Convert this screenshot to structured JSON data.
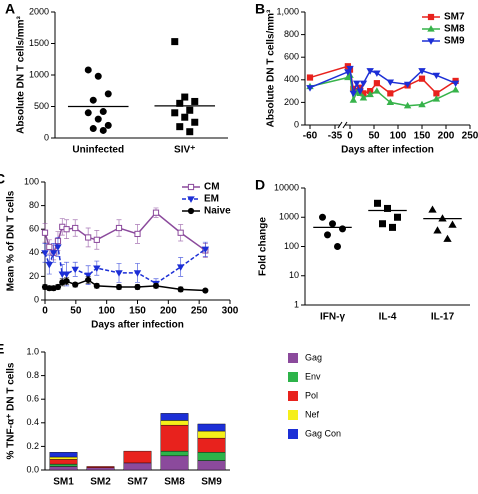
{
  "chart_data": [
    {
      "type": "dot",
      "panel_label": "A",
      "y_label": "Absolute DN T cells/mm³",
      "categories": [
        "Uninfected",
        "SIV⁺"
      ],
      "markers": [
        "circle",
        "square"
      ],
      "color": "#000000",
      "values": [
        [
          1080,
          980,
          700,
          600,
          420,
          400,
          300,
          200,
          150,
          120
        ],
        [
          1530,
          650,
          580,
          550,
          440,
          400,
          330,
          250,
          180,
          100
        ]
      ],
      "means": [
        500,
        510
      ],
      "ylim": [
        0,
        2000
      ],
      "yticks": [
        0,
        500,
        1000,
        1500,
        2000
      ]
    },
    {
      "type": "line",
      "panel_label": "B",
      "x_label": "Days after infection",
      "y_label": "Absolute DN T cells/mm³",
      "x": [
        -60,
        -5,
        0,
        7,
        14,
        21,
        28,
        42,
        56,
        84,
        120,
        150,
        180,
        220
      ],
      "series": [
        {
          "name": "SM7",
          "color": "#e8221d",
          "marker": "square",
          "values": [
            420,
            520,
            490,
            320,
            300,
            330,
            280,
            300,
            370,
            280,
            350,
            410,
            280,
            390
          ]
        },
        {
          "name": "SM8",
          "color": "#37b34a",
          "marker": "triangle",
          "values": [
            340,
            420,
            440,
            220,
            290,
            280,
            240,
            270,
            300,
            200,
            170,
            180,
            230,
            310
          ]
        },
        {
          "name": "SM9",
          "color": "#1c2fd6",
          "marker": "triangle-down",
          "values": [
            330,
            470,
            500,
            280,
            370,
            300,
            370,
            480,
            460,
            380,
            360,
            480,
            440,
            370
          ]
        }
      ],
      "xlim": [
        -65,
        250
      ],
      "xticks": [
        -60,
        -35,
        0,
        50,
        100,
        150,
        200,
        250
      ],
      "x_axis_break": true,
      "ylim": [
        0,
        1000
      ],
      "yticks": [
        0,
        200,
        400,
        600,
        800,
        {
          "value": 1000,
          "label": "1,000"
        }
      ],
      "legend": "top-right"
    },
    {
      "type": "line",
      "panel_label": "C",
      "x_label": "Days after infection",
      "y_label": "Mean % of DN T cells",
      "x": [
        0,
        7,
        14,
        21,
        28,
        35,
        49,
        70,
        84,
        120,
        150,
        180,
        220,
        260
      ],
      "series": [
        {
          "name": "CM",
          "color": "#8b4a9c",
          "marker": "open-square",
          "values": [
            57,
            45,
            40,
            50,
            62,
            60,
            61,
            53,
            51,
            61,
            56,
            74,
            57,
            42
          ],
          "errors": [
            8,
            6,
            6,
            8,
            7,
            8,
            7,
            8,
            8,
            7,
            8,
            4,
            7,
            6
          ]
        },
        {
          "name": "EM",
          "color": "#1c2fd6",
          "marker": "triangle-down",
          "dashed": true,
          "values": [
            40,
            30,
            40,
            45,
            22,
            22,
            26,
            21,
            27,
            23,
            23,
            14,
            28,
            43
          ],
          "errors": [
            8,
            8,
            8,
            8,
            8,
            10,
            6,
            8,
            6,
            8,
            8,
            4,
            8,
            6
          ]
        },
        {
          "name": "Naive",
          "color": "#000000",
          "marker": "circle",
          "values": [
            11,
            10,
            10,
            11,
            15,
            16,
            13,
            17,
            12,
            11,
            11,
            12,
            9,
            8
          ],
          "errors": [
            2,
            2,
            2,
            2,
            3,
            3,
            2,
            3,
            2,
            2,
            2,
            2,
            2,
            1
          ]
        }
      ],
      "xlim": [
        0,
        300
      ],
      "xticks": [
        0,
        50,
        100,
        150,
        200,
        250,
        300
      ],
      "ylim": [
        0,
        100
      ],
      "yticks": [
        0,
        20,
        40,
        60,
        80,
        100
      ],
      "legend": "top-right"
    },
    {
      "type": "dot",
      "panel_label": "D",
      "y_label": "Fold change",
      "log_scale": true,
      "categories": [
        "IFN-γ",
        "IL-4",
        "IL-17"
      ],
      "markers": [
        "circle",
        "square",
        "triangle"
      ],
      "color": "#000000",
      "values": [
        [
          1000,
          600,
          400,
          250,
          100
        ],
        [
          3000,
          2000,
          1000,
          600,
          450
        ],
        [
          1800,
          900,
          550,
          350,
          180
        ]
      ],
      "means": [
        450,
        1700,
        900
      ],
      "ylim": [
        1,
        10000
      ],
      "yticks": [
        1,
        10,
        100,
        1000,
        10000
      ]
    },
    {
      "type": "bar",
      "panel_label": "E",
      "y_label": "% TNF-α⁺ DN T cells",
      "categories": [
        "SM1",
        "SM2",
        "SM7",
        "SM8",
        "SM9"
      ],
      "series": [
        {
          "name": "Gag",
          "color": "#8b4a9c",
          "values": [
            0.03,
            0.02,
            0.06,
            0.12,
            0.08
          ]
        },
        {
          "name": "Env",
          "color": "#2db34a",
          "values": [
            0.02,
            0,
            0,
            0.04,
            0.07
          ]
        },
        {
          "name": "Pol",
          "color": "#e8221d",
          "values": [
            0.04,
            0.01,
            0.1,
            0.22,
            0.12
          ]
        },
        {
          "name": "Nef",
          "color": "#f5ef1a",
          "values": [
            0.02,
            0,
            0,
            0.04,
            0.06
          ]
        },
        {
          "name": "Gag Con",
          "color": "#1c2fd6",
          "values": [
            0.04,
            0,
            0,
            0.06,
            0.06
          ]
        }
      ],
      "ylim": [
        0,
        1
      ],
      "yticks": [
        {
          "value": 0,
          "label": "0.0"
        },
        0.2,
        0.4,
        0.6,
        0.8,
        {
          "value": 1,
          "label": "1.0"
        }
      ],
      "legend": "right"
    }
  ]
}
